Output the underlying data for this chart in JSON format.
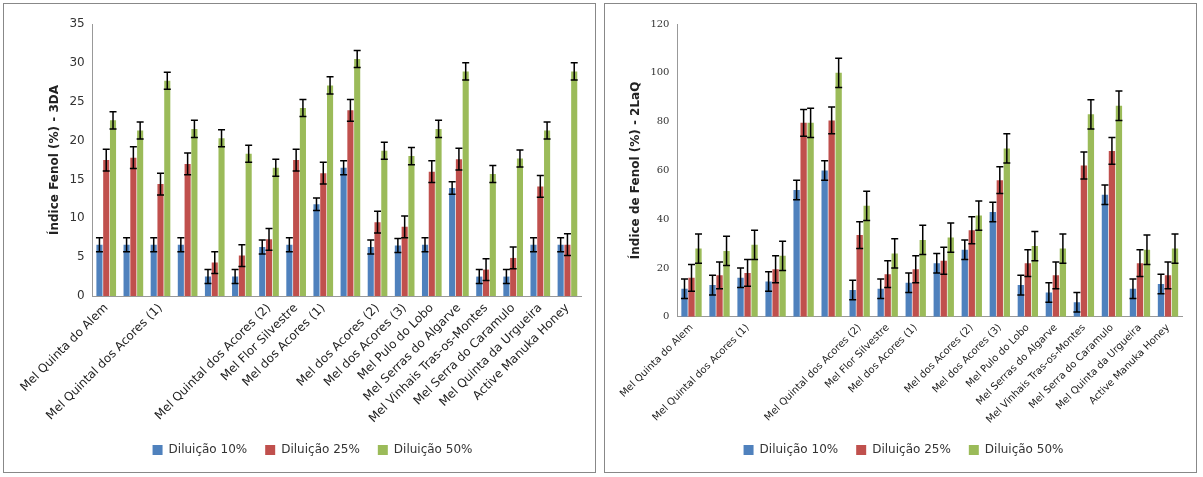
{
  "chart_data": [
    {
      "type": "bar",
      "ylabel": "Índice Fenol (%) - 3DA",
      "categories": [
        "Mel Quinta do Alem",
        null,
        "Mel Quintal dos Acores (1)",
        null,
        null,
        null,
        "Mel Quintal dos Acores (2)",
        "Mel Flor Silvestre",
        "Mel dos Acores (1)",
        null,
        "Mel dos Acores (2)",
        "Mel dos Acores (3)",
        "Mel Pulo do Lobo",
        "Mel Serras do Algarve",
        "Mel Vinhais Tras-os-Montes",
        "Mel Serra do Caramulo",
        "Mel Quinta da Urgueira",
        "Active Manuka Honey"
      ],
      "ylim": [
        0,
        35
      ],
      "yticks": [
        0,
        5,
        10,
        15,
        20,
        25,
        30,
        35
      ],
      "grid": false,
      "legend": "bottom",
      "series": [
        {
          "name": "Diluição 10%",
          "color": "#4f81bd",
          "values": [
            6.6,
            6.6,
            6.6,
            6.6,
            2.5,
            2.5,
            6.3,
            6.6,
            11.8,
            16.5,
            6.3,
            6.5,
            6.6,
            13.9,
            2.5,
            2.5,
            6.6,
            6.6
          ],
          "errors": [
            0.9,
            0.9,
            0.9,
            0.9,
            0.9,
            0.9,
            0.9,
            0.9,
            0.8,
            0.9,
            0.9,
            0.9,
            0.9,
            0.8,
            0.9,
            0.9,
            0.9,
            0.9
          ]
        },
        {
          "name": "Diluição 25%",
          "color": "#c0504d",
          "values": [
            17.5,
            17.8,
            14.4,
            17.0,
            4.3,
            5.2,
            7.3,
            17.5,
            15.8,
            23.9,
            9.5,
            8.9,
            16.0,
            17.6,
            3.4,
            4.9,
            14.1,
            6.6
          ],
          "errors": [
            1.4,
            1.4,
            1.4,
            1.4,
            1.4,
            1.4,
            1.4,
            1.4,
            1.4,
            1.4,
            1.4,
            1.4,
            1.4,
            1.4,
            1.4,
            1.4,
            1.4,
            1.4
          ]
        },
        {
          "name": "Diluição 50%",
          "color": "#9bbb59",
          "values": [
            22.6,
            21.3,
            27.7,
            21.5,
            20.3,
            18.3,
            16.5,
            24.2,
            27.1,
            30.5,
            18.7,
            18.0,
            21.5,
            28.9,
            15.7,
            17.7,
            21.3,
            28.9
          ],
          "errors": [
            1.1,
            1.1,
            1.1,
            1.1,
            1.1,
            1.1,
            1.1,
            1.1,
            1.1,
            1.1,
            1.1,
            1.1,
            1.1,
            1.1,
            1.1,
            1.1,
            1.1,
            1.1
          ]
        }
      ]
    },
    {
      "type": "bar",
      "ylabel": "Índice de Fenol (%) - 2LaQ",
      "categories": [
        "Mel Quinta do Alem",
        null,
        "Mel Quintal dos Acores (1)",
        null,
        null,
        null,
        "Mel Quintal dos Acores (2)",
        "Mel Flor Silvestre",
        "Mel dos Acores (1)",
        null,
        "Mel dos Acores (2)",
        "Mel dos Acores (3)",
        "Mel Pulo do Lobo",
        "Mel Serras do Algarve",
        "Mel Vinhais Tras-os-Montes",
        "Mel Serra do Caramulo",
        "Mel Quinta da Urgueira",
        "Active Manuka Honey"
      ],
      "ylim": [
        0,
        120
      ],
      "yticks": [
        0,
        20,
        40,
        60,
        80,
        100,
        120
      ],
      "grid": false,
      "legend": "bottom",
      "series": [
        {
          "name": "Diluição 10%",
          "color": "#4f81bd",
          "values": [
            11.5,
            13,
            16,
            14.5,
            52,
            60,
            11,
            11.5,
            14,
            22,
            27.5,
            43,
            13,
            10,
            6,
            50,
            11.5,
            13.5
          ],
          "errors": [
            4,
            4,
            4,
            4,
            4,
            4,
            4,
            4,
            4,
            4,
            4,
            4,
            4,
            4,
            4,
            4,
            4,
            4
          ]
        },
        {
          "name": "Diluição 25%",
          "color": "#c0504d",
          "values": [
            16,
            17,
            18,
            19.5,
            79.5,
            80.5,
            33.5,
            17.5,
            19.5,
            23,
            35.5,
            56,
            22,
            17,
            62,
            68,
            22,
            17
          ],
          "errors": [
            5.5,
            5.5,
            5.5,
            5.5,
            5.5,
            5.5,
            5.5,
            5.5,
            5.5,
            5.5,
            5.5,
            5.5,
            5.5,
            5.5,
            5.5,
            5.5,
            5.5,
            5.5
          ]
        },
        {
          "name": "Diluição 50%",
          "color": "#9bbb59",
          "values": [
            28,
            27,
            29.5,
            25,
            79.5,
            100,
            45.5,
            26,
            31.5,
            32.5,
            41.5,
            69,
            29,
            28,
            83,
            86.5,
            27.5,
            28
          ],
          "errors": [
            6,
            6,
            6,
            6,
            6,
            6,
            6,
            6,
            6,
            6,
            6,
            6,
            6,
            6,
            6,
            6,
            6,
            6
          ]
        }
      ]
    }
  ]
}
